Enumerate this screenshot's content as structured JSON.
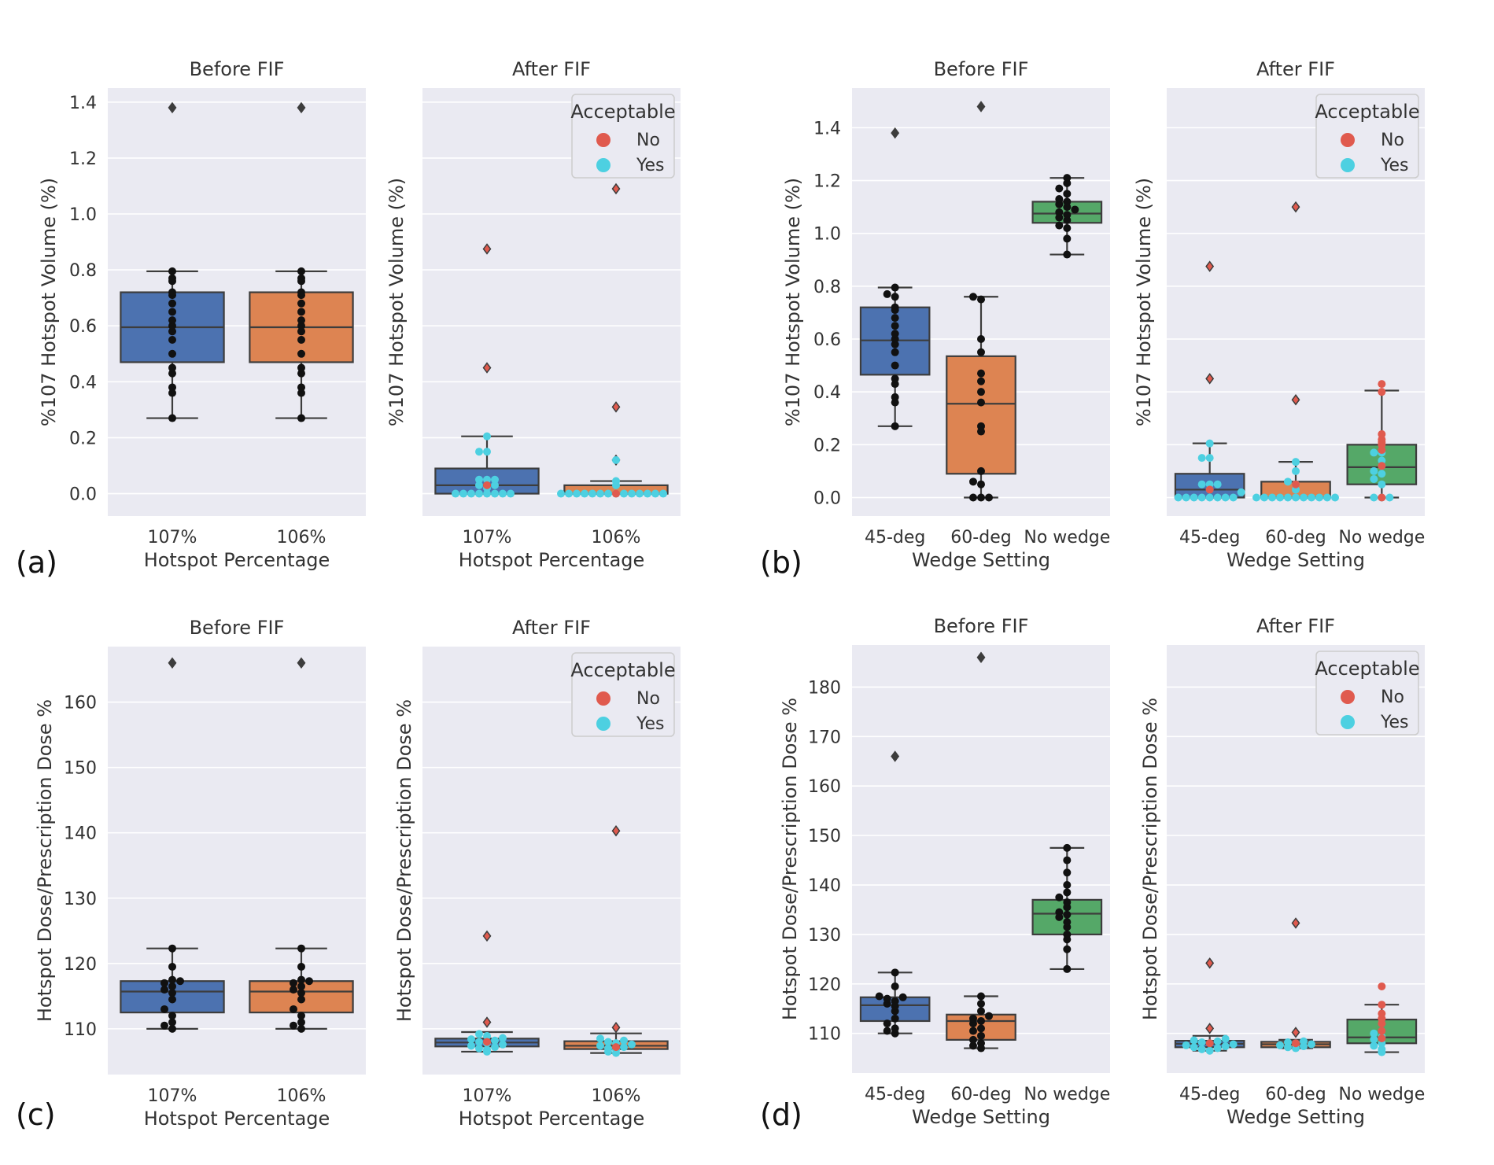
{
  "panels": [
    {
      "label": "(a)",
      "ylabel": "%107 Hotspot Volume (%)",
      "xlabel": "Hotspot Percentage",
      "ylim": [
        -0.08,
        1.45
      ],
      "yticks": [
        "0.0",
        "0.2",
        "0.4",
        "0.6",
        "0.8",
        "1.0",
        "1.2",
        "1.4"
      ],
      "ytick_values": [
        0.0,
        0.2,
        0.4,
        0.6,
        0.8,
        1.0,
        1.2,
        1.4
      ],
      "grid_values": [
        0.0,
        0.2,
        0.4,
        0.6,
        0.8,
        1.0,
        1.2,
        1.4
      ],
      "legend": {
        "title": "Acceptable",
        "entries": [
          "No",
          "Yes"
        ]
      },
      "categories": [
        "107%",
        "106%"
      ],
      "before": {
        "title": "Before FIF",
        "boxes": [
          {
            "whisker_low": 0.27,
            "q1": 0.47,
            "median": 0.595,
            "q3": 0.72,
            "whisker_high": 0.795,
            "outliers": [
              1.38
            ],
            "points": [
              0.27,
              0.36,
              0.38,
              0.43,
              0.45,
              0.5,
              0.55,
              0.58,
              0.6,
              0.62,
              0.65,
              0.68,
              0.71,
              0.72,
              0.76,
              0.77,
              0.795
            ]
          },
          {
            "whisker_low": 0.27,
            "q1": 0.47,
            "median": 0.595,
            "q3": 0.72,
            "whisker_high": 0.795,
            "outliers": [
              1.38
            ],
            "points": [
              0.27,
              0.36,
              0.38,
              0.43,
              0.45,
              0.5,
              0.55,
              0.58,
              0.6,
              0.62,
              0.65,
              0.68,
              0.71,
              0.72,
              0.76,
              0.77,
              0.795
            ]
          }
        ]
      },
      "after": {
        "title": "After FIF",
        "boxes": [
          {
            "whisker_low": 0.0,
            "q1": 0.0,
            "median": 0.03,
            "q3": 0.09,
            "whisker_high": 0.205,
            "outliers": [
              0.45,
              0.875
            ],
            "points": [
              0.0,
              0.0,
              0.0,
              0.0,
              0.0,
              0.0,
              0.0,
              0.0,
              0.02,
              0.03,
              0.03,
              0.05,
              0.05,
              0.05,
              0.15,
              0.15,
              0.205
            ],
            "no_points": [
              0.03
            ]
          },
          {
            "whisker_low": 0.0,
            "q1": 0.0,
            "median": 0.0,
            "q3": 0.03,
            "whisker_high": 0.045,
            "outliers": [
              0.12,
              0.31,
              1.09
            ],
            "points": [
              0.0,
              0.0,
              0.0,
              0.0,
              0.0,
              0.0,
              0.0,
              0.0,
              0.0,
              0.0,
              0.0,
              0.0,
              0.0,
              0.0,
              0.03,
              0.045,
              0.12
            ],
            "no_points": [
              0.0
            ]
          }
        ]
      }
    },
    {
      "label": "(b)",
      "ylabel": "%107 Hotspot Volume (%)",
      "xlabel": "Wedge Setting",
      "ylim": [
        -0.07,
        1.55
      ],
      "yticks": [
        "0.0",
        "0.2",
        "0.4",
        "0.6",
        "0.8",
        "1.0",
        "1.2",
        "1.4"
      ],
      "ytick_values": [
        0.0,
        0.2,
        0.4,
        0.6,
        0.8,
        1.0,
        1.2,
        1.4
      ],
      "grid_values": [
        0.0,
        0.2,
        0.4,
        0.6,
        0.8,
        1.0,
        1.2,
        1.4
      ],
      "legend": {
        "title": "Acceptable",
        "entries": [
          "No",
          "Yes"
        ]
      },
      "categories": [
        "45-deg",
        "60-deg",
        "No wedge"
      ],
      "before": {
        "title": "Before FIF",
        "boxes": [
          {
            "whisker_low": 0.27,
            "q1": 0.465,
            "median": 0.595,
            "q3": 0.72,
            "whisker_high": 0.795,
            "outliers": [
              1.38
            ],
            "points": [
              0.27,
              0.36,
              0.38,
              0.43,
              0.45,
              0.5,
              0.55,
              0.58,
              0.6,
              0.62,
              0.65,
              0.68,
              0.71,
              0.72,
              0.76,
              0.77,
              0.795
            ]
          },
          {
            "whisker_low": 0.0,
            "q1": 0.09,
            "median": 0.355,
            "q3": 0.535,
            "whisker_high": 0.76,
            "outliers": [
              1.48
            ],
            "points": [
              0.0,
              0.0,
              0.0,
              0.05,
              0.06,
              0.1,
              0.25,
              0.27,
              0.36,
              0.4,
              0.44,
              0.47,
              0.55,
              0.6,
              0.75,
              0.76
            ]
          },
          {
            "whisker_low": 0.92,
            "q1": 1.04,
            "median": 1.075,
            "q3": 1.12,
            "whisker_high": 1.21,
            "outliers": [],
            "points": [
              0.92,
              0.98,
              1.02,
              1.03,
              1.05,
              1.06,
              1.07,
              1.08,
              1.09,
              1.1,
              1.11,
              1.12,
              1.13,
              1.15,
              1.17,
              1.19,
              1.21
            ]
          }
        ]
      },
      "after": {
        "title": "After FIF",
        "boxes": [
          {
            "whisker_low": 0.0,
            "q1": 0.0,
            "median": 0.03,
            "q3": 0.09,
            "whisker_high": 0.205,
            "outliers": [
              0.45,
              0.875
            ],
            "points": [
              0.0,
              0.0,
              0.0,
              0.0,
              0.0,
              0.0,
              0.0,
              0.0,
              0.02,
              0.03,
              0.05,
              0.05,
              0.05,
              0.15,
              0.15,
              0.205
            ],
            "no_points": [
              0.03
            ]
          },
          {
            "whisker_low": 0.0,
            "q1": 0.0,
            "median": 0.0,
            "q3": 0.06,
            "whisker_high": 0.135,
            "outliers": [
              0.37,
              1.1
            ],
            "points": [
              0.0,
              0.0,
              0.0,
              0.0,
              0.0,
              0.0,
              0.0,
              0.0,
              0.0,
              0.0,
              0.0,
              0.03,
              0.05,
              0.06,
              0.1,
              0.135
            ],
            "no_points": [
              0.05
            ]
          },
          {
            "whisker_low": 0.0,
            "q1": 0.05,
            "median": 0.115,
            "q3": 0.2,
            "whisker_high": 0.405,
            "outliers": [],
            "points": [
              0.0,
              0.0,
              0.0,
              0.05,
              0.07,
              0.09,
              0.1,
              0.12,
              0.14,
              0.17,
              0.17
            ],
            "no_points": [
              0.12,
              0.18,
              0.2,
              0.21,
              0.22,
              0.24,
              0.4,
              0.43,
              0.0
            ]
          }
        ]
      }
    },
    {
      "label": "(c)",
      "ylabel": "Hotspot Dose/Prescription Dose %",
      "xlabel": "Hotspot Percentage",
      "ylim": [
        103.0,
        168.5
      ],
      "yticks": [
        "110",
        "120",
        "130",
        "140",
        "150",
        "160"
      ],
      "ytick_values": [
        110,
        120,
        130,
        140,
        150,
        160
      ],
      "grid_values": [
        110,
        120,
        130,
        140,
        150,
        160
      ],
      "legend": {
        "title": "Acceptable",
        "entries": [
          "No",
          "Yes"
        ]
      },
      "categories": [
        "107%",
        "106%"
      ],
      "before": {
        "title": "Before FIF",
        "boxes": [
          {
            "whisker_low": 110.0,
            "q1": 112.5,
            "median": 115.7,
            "q3": 117.3,
            "whisker_high": 122.3,
            "outliers": [
              166.0
            ],
            "points": [
              110.0,
              110.5,
              111.0,
              112.0,
              113.0,
              114.5,
              115.5,
              116.0,
              116.5,
              117.0,
              117.3,
              117.5,
              119.5,
              122.3
            ]
          },
          {
            "whisker_low": 110.0,
            "q1": 112.5,
            "median": 115.7,
            "q3": 117.3,
            "whisker_high": 122.3,
            "outliers": [
              166.0
            ],
            "points": [
              110.0,
              110.5,
              111.0,
              112.0,
              113.0,
              114.5,
              115.5,
              116.0,
              116.5,
              117.0,
              117.3,
              117.5,
              119.5,
              122.3
            ]
          }
        ]
      },
      "after": {
        "title": "After FIF",
        "boxes": [
          {
            "whisker_low": 106.5,
            "q1": 107.3,
            "median": 107.9,
            "q3": 108.5,
            "whisker_high": 109.5,
            "outliers": [
              111.0,
              124.2
            ],
            "points": [
              106.5,
              106.8,
              107.0,
              107.2,
              107.4,
              107.6,
              107.8,
              108.0,
              108.2,
              108.4,
              108.6,
              108.9,
              109.2
            ],
            "no_points": [
              108.0
            ]
          },
          {
            "whisker_low": 106.3,
            "q1": 106.9,
            "median": 107.4,
            "q3": 108.1,
            "whisker_high": 109.3,
            "outliers": [
              110.2,
              140.3
            ],
            "points": [
              106.3,
              106.5,
              106.8,
              107.0,
              107.2,
              107.4,
              107.6,
              107.8,
              108.0,
              108.2,
              108.5
            ],
            "no_points": [
              107.2
            ]
          }
        ]
      }
    },
    {
      "label": "(d)",
      "ylabel": "Hotspot Dose/Prescription Dose %",
      "xlabel": "Wedge Setting",
      "ylim": [
        102.0,
        188.5
      ],
      "yticks": [
        "110",
        "120",
        "130",
        "140",
        "150",
        "160",
        "170",
        "180"
      ],
      "ytick_values": [
        110,
        120,
        130,
        140,
        150,
        160,
        170,
        180
      ],
      "grid_values": [
        110,
        120,
        130,
        140,
        150,
        160,
        170,
        180
      ],
      "legend": {
        "title": "Acceptable",
        "entries": [
          "No",
          "Yes"
        ]
      },
      "categories": [
        "45-deg",
        "60-deg",
        "No wedge"
      ],
      "before": {
        "title": "Before FIF",
        "boxes": [
          {
            "whisker_low": 110.0,
            "q1": 112.5,
            "median": 115.7,
            "q3": 117.3,
            "whisker_high": 122.3,
            "outliers": [
              166.0
            ],
            "points": [
              110.0,
              110.5,
              111.0,
              112.0,
              113.0,
              114.5,
              115.5,
              116.0,
              116.5,
              117.0,
              117.3,
              117.5,
              119.5,
              122.3
            ]
          },
          {
            "whisker_low": 107.0,
            "q1": 108.7,
            "median": 112.5,
            "q3": 113.8,
            "whisker_high": 117.5,
            "outliers": [
              186.0
            ],
            "points": [
              107.0,
              107.5,
              108.0,
              108.7,
              109.5,
              110.5,
              111.0,
              112.0,
              112.5,
              113.0,
              113.5,
              114.5,
              116.0,
              117.5
            ]
          },
          {
            "whisker_low": 123.0,
            "q1": 130.0,
            "median": 134.2,
            "q3": 137.0,
            "whisker_high": 147.5,
            "outliers": [],
            "points": [
              123.0,
              127.0,
              129.0,
              130.0,
              131.5,
              132.5,
              133.5,
              134.0,
              134.5,
              135.5,
              136.5,
              137.5,
              138.5,
              140.0,
              142.5,
              145.0,
              147.5
            ]
          }
        ]
      },
      "after": {
        "title": "After FIF",
        "boxes": [
          {
            "whisker_low": 106.5,
            "q1": 107.2,
            "median": 107.9,
            "q3": 108.5,
            "whisker_high": 109.5,
            "outliers": [
              111.0,
              124.2
            ],
            "points": [
              106.5,
              106.8,
              107.0,
              107.2,
              107.4,
              107.6,
              107.8,
              108.0,
              108.2,
              108.4,
              108.6,
              108.9
            ],
            "no_points": [
              108.0
            ]
          },
          {
            "whisker_low": 107.0,
            "q1": 107.2,
            "median": 107.8,
            "q3": 108.3,
            "whisker_high": 108.7,
            "outliers": [
              110.2,
              132.3
            ],
            "points": [
              107.0,
              107.2,
              107.4,
              107.6,
              107.8,
              108.0,
              108.2,
              108.4
            ],
            "no_points": [
              108.0
            ]
          },
          {
            "whisker_low": 106.2,
            "q1": 108.0,
            "median": 109.2,
            "q3": 112.8,
            "whisker_high": 115.8,
            "outliers": [],
            "points": [
              106.2,
              106.8,
              107.5,
              108.0,
              108.8,
              109.3,
              110.0
            ],
            "no_points": [
              109.0,
              110.5,
              112.0,
              113.0,
              114.0,
              115.8,
              119.5
            ]
          }
        ]
      }
    }
  ],
  "colors": {
    "axes_bg": "#eaeaf2",
    "grid": "#ffffff",
    "box_colors": [
      "#4c72b0",
      "#dd8452",
      "#55a868"
    ],
    "edge": "#3d3d3d",
    "no": "#e05a4e",
    "yes": "#4dd0e1",
    "black_point": "#111111"
  },
  "chart_data": [
    {
      "type": "box",
      "title": "Before FIF",
      "panel": "(a)",
      "xlabel": "Hotspot Percentage",
      "ylabel": "%107 Hotspot Volume (%)",
      "categories": [
        "107%",
        "106%"
      ],
      "ylim": [
        -0.08,
        1.45
      ]
    },
    {
      "type": "box",
      "title": "After FIF",
      "panel": "(a)",
      "xlabel": "Hotspot Percentage",
      "ylabel": "%107 Hotspot Volume (%)",
      "categories": [
        "107%",
        "106%"
      ],
      "legend": [
        "No",
        "Yes"
      ]
    },
    {
      "type": "box",
      "title": "Before FIF",
      "panel": "(b)",
      "xlabel": "Wedge Setting",
      "ylabel": "%107 Hotspot Volume (%)",
      "categories": [
        "45-deg",
        "60-deg",
        "No wedge"
      ],
      "ylim": [
        -0.07,
        1.55
      ]
    },
    {
      "type": "box",
      "title": "After FIF",
      "panel": "(b)",
      "xlabel": "Wedge Setting",
      "ylabel": "%107 Hotspot Volume (%)",
      "categories": [
        "45-deg",
        "60-deg",
        "No wedge"
      ],
      "legend": [
        "No",
        "Yes"
      ]
    },
    {
      "type": "box",
      "title": "Before FIF",
      "panel": "(c)",
      "xlabel": "Hotspot Percentage",
      "ylabel": "Hotspot Dose/Prescription Dose %",
      "categories": [
        "107%",
        "106%"
      ],
      "ylim": [
        103,
        168.5
      ]
    },
    {
      "type": "box",
      "title": "After FIF",
      "panel": "(c)",
      "xlabel": "Hotspot Percentage",
      "ylabel": "Hotspot Dose/Prescription Dose %",
      "categories": [
        "107%",
        "106%"
      ],
      "legend": [
        "No",
        "Yes"
      ]
    },
    {
      "type": "box",
      "title": "Before FIF",
      "panel": "(d)",
      "xlabel": "Wedge Setting",
      "ylabel": "Hotspot Dose/Prescription Dose %",
      "categories": [
        "45-deg",
        "60-deg",
        "No wedge"
      ],
      "ylim": [
        102,
        188.5
      ]
    },
    {
      "type": "box",
      "title": "After FIF",
      "panel": "(d)",
      "xlabel": "Wedge Setting",
      "ylabel": "Hotspot Dose/Prescription Dose %",
      "categories": [
        "45-deg",
        "60-deg",
        "No wedge"
      ],
      "legend": [
        "No",
        "Yes"
      ]
    }
  ]
}
